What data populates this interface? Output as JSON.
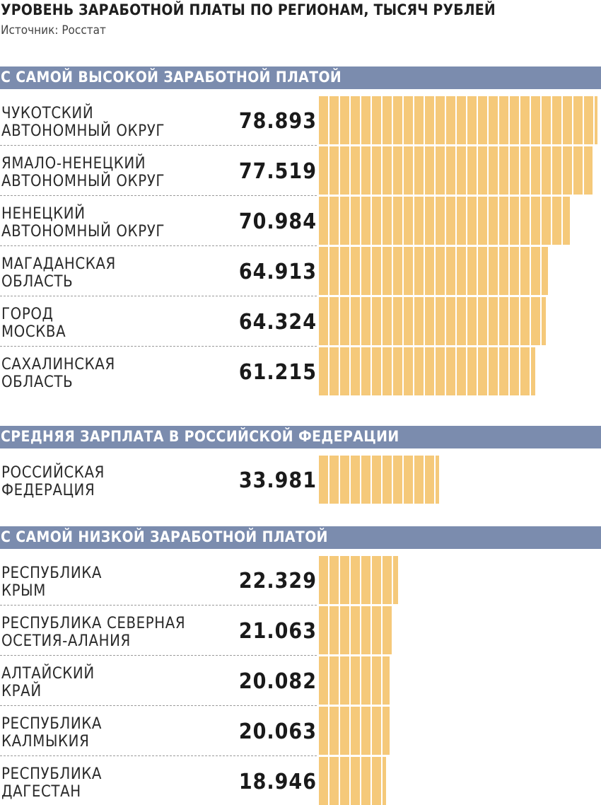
{
  "header": {
    "title": "УРОВЕНЬ ЗАРАБОТНОЙ ПЛАТЫ ПО РЕГИОНАМ, ТЫСЯЧ РУБЛЕЙ",
    "source": "Источник: Росстат"
  },
  "colors": {
    "band": "#7b8cae",
    "bar": "#f5c97a"
  },
  "chart_data": {
    "type": "bar",
    "title": "УРОВЕНЬ ЗАРАБОТНОЙ ПЛАТЫ ПО РЕГИОНАМ, ТЫСЯЧ РУБЛЕЙ",
    "xlim": [
      0,
      80
    ],
    "groups": [
      {
        "name": "С САМОЙ ВЫСОКОЙ ЗАРАБОТНОЙ ПЛАТОЙ",
        "items": [
          {
            "label": "ЧУКОТСКИЙ\nАВТОНОМНЫЙ ОКРУГ",
            "value": 78.893,
            "value_label": "78.893"
          },
          {
            "label": "ЯМАЛО-НЕНЕЦКИЙ\nАВТОНОМНЫЙ ОКРУГ",
            "value": 77.519,
            "value_label": "77.519"
          },
          {
            "label": "НЕНЕЦКИЙ\nАВТОНОМНЫЙ ОКРУГ",
            "value": 70.984,
            "value_label": "70.984"
          },
          {
            "label": "МАГАДАНСКАЯ\nОБЛАСТЬ",
            "value": 64.913,
            "value_label": "64.913"
          },
          {
            "label": "ГОРОД\nМОСКВА",
            "value": 64.324,
            "value_label": "64.324"
          },
          {
            "label": "САХАЛИНСКАЯ\nОБЛАСТЬ",
            "value": 61.215,
            "value_label": "61.215"
          }
        ]
      },
      {
        "name": "СРЕДНЯЯ ЗАРПЛАТА В РОССИЙСКОЙ ФЕДЕРАЦИИ",
        "items": [
          {
            "label": "РОССИЙСКАЯ\nФЕДЕРАЦИЯ",
            "value": 33.981,
            "value_label": "33.981"
          }
        ]
      },
      {
        "name": "С САМОЙ НИЗКОЙ ЗАРАБОТНОЙ ПЛАТОЙ",
        "items": [
          {
            "label": "РЕСПУБЛИКА\nКРЫМ",
            "value": 22.329,
            "value_label": "22.329"
          },
          {
            "label": "РЕСПУБЛИКА СЕВЕРНАЯ\nОСЕТИЯ-АЛАНИЯ",
            "value": 21.063,
            "value_label": "21.063"
          },
          {
            "label": "АЛТАЙСКИЙ\nКРАЙ",
            "value": 20.082,
            "value_label": "20.082"
          },
          {
            "label": "РЕСПУБЛИКА\nКАЛМЫКИЯ",
            "value": 20.063,
            "value_label": "20.063"
          },
          {
            "label": "РЕСПУБЛИКА\nДАГЕСТАН",
            "value": 18.946,
            "value_label": "18.946"
          }
        ]
      }
    ]
  }
}
